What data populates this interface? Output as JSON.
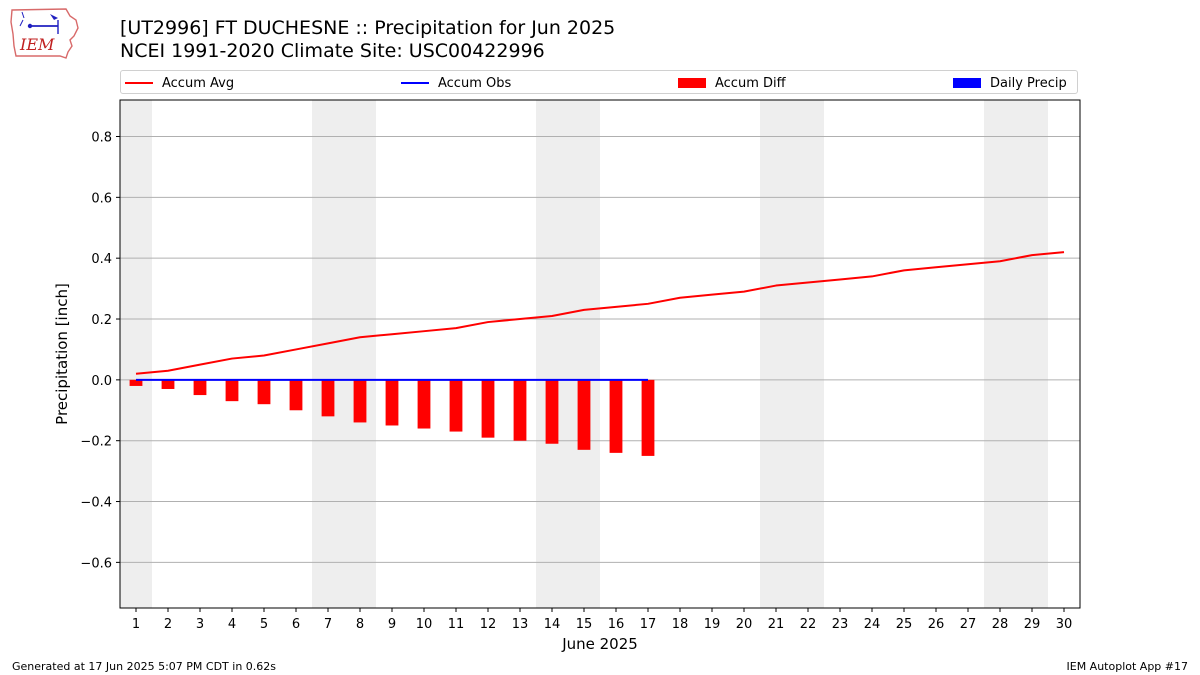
{
  "header": {
    "title_line1": "[UT2996] FT DUCHESNE :: Precipitation for Jun 2025",
    "title_line2": "NCEI 1991-2020 Climate Site: USC00422996",
    "logo_text": "IEM"
  },
  "footer": {
    "left": "Generated at 17 Jun 2025 5:07 PM CDT in 0.62s",
    "right": "IEM Autoplot App #17"
  },
  "legend": {
    "items": [
      {
        "label": "Accum Avg",
        "color": "#ff0000",
        "kind": "line"
      },
      {
        "label": "Accum Obs",
        "color": "#0000ff",
        "kind": "line"
      },
      {
        "label": "Accum Diff",
        "color": "#ff0000",
        "kind": "box"
      },
      {
        "label": "Daily Precip",
        "color": "#0000ff",
        "kind": "box"
      }
    ]
  },
  "chart_data": {
    "type": "line",
    "title": "[UT2996] FT DUCHESNE :: Precipitation for Jun 2025",
    "subtitle": "NCEI 1991-2020 Climate Site: USC00422996",
    "xlabel": "June 2025",
    "ylabel": "Precipitation [inch]",
    "xlim": [
      0.5,
      30.5
    ],
    "ylim": [
      -0.75,
      0.92
    ],
    "x": [
      1,
      2,
      3,
      4,
      5,
      6,
      7,
      8,
      9,
      10,
      11,
      12,
      13,
      14,
      15,
      16,
      17,
      18,
      19,
      20,
      21,
      22,
      23,
      24,
      25,
      26,
      27,
      28,
      29,
      30
    ],
    "x_tick_labels": [
      "1",
      "2",
      "3",
      "4",
      "5",
      "6",
      "7",
      "8",
      "9",
      "10",
      "11",
      "12",
      "13",
      "14",
      "15",
      "16",
      "17",
      "18",
      "19",
      "20",
      "21",
      "22",
      "23",
      "24",
      "25",
      "26",
      "27",
      "28",
      "29",
      "30"
    ],
    "y_ticks": [
      -0.6,
      -0.4,
      -0.2,
      0.0,
      0.2,
      0.4,
      0.6,
      0.8
    ],
    "y_tick_labels": [
      "−0.6",
      "−0.4",
      "−0.2",
      "0.0",
      "0.2",
      "0.4",
      "0.6",
      "0.8"
    ],
    "grid": "horizontal",
    "legend_position": "top",
    "weekend_shading": [
      [
        0.5,
        1.5
      ],
      [
        6.5,
        8.5
      ],
      [
        13.5,
        15.5
      ],
      [
        20.5,
        22.5
      ],
      [
        27.5,
        29.5
      ]
    ],
    "series": [
      {
        "name": "Accum Avg",
        "type": "line",
        "color": "#ff0000",
        "x": [
          1,
          2,
          3,
          4,
          5,
          6,
          7,
          8,
          9,
          10,
          11,
          12,
          13,
          14,
          15,
          16,
          17,
          18,
          19,
          20,
          21,
          22,
          23,
          24,
          25,
          26,
          27,
          28,
          29,
          30
        ],
        "values": [
          0.02,
          0.03,
          0.05,
          0.07,
          0.08,
          0.1,
          0.12,
          0.14,
          0.15,
          0.16,
          0.17,
          0.19,
          0.2,
          0.21,
          0.23,
          0.24,
          0.25,
          0.27,
          0.28,
          0.29,
          0.31,
          0.32,
          0.33,
          0.34,
          0.36,
          0.37,
          0.38,
          0.39,
          0.41,
          0.42
        ]
      },
      {
        "name": "Accum Obs",
        "type": "line",
        "color": "#0000ff",
        "x": [
          1,
          2,
          3,
          4,
          5,
          6,
          7,
          8,
          9,
          10,
          11,
          12,
          13,
          14,
          15,
          16,
          17
        ],
        "values": [
          0,
          0,
          0,
          0,
          0,
          0,
          0,
          0,
          0,
          0,
          0,
          0,
          0,
          0,
          0,
          0,
          0
        ]
      },
      {
        "name": "Accum Diff",
        "type": "bar",
        "color": "#ff0000",
        "x": [
          1,
          2,
          3,
          4,
          5,
          6,
          7,
          8,
          9,
          10,
          11,
          12,
          13,
          14,
          15,
          16,
          17
        ],
        "values": [
          -0.02,
          -0.03,
          -0.05,
          -0.07,
          -0.08,
          -0.1,
          -0.12,
          -0.14,
          -0.15,
          -0.16,
          -0.17,
          -0.19,
          -0.2,
          -0.21,
          -0.23,
          -0.24,
          -0.25
        ]
      },
      {
        "name": "Daily Precip",
        "type": "bar",
        "color": "#0000ff",
        "x": [
          1,
          2,
          3,
          4,
          5,
          6,
          7,
          8,
          9,
          10,
          11,
          12,
          13,
          14,
          15,
          16,
          17
        ],
        "values": [
          0,
          0,
          0,
          0,
          0,
          0,
          0,
          0,
          0,
          0,
          0,
          0,
          0,
          0,
          0,
          0,
          0
        ]
      }
    ]
  }
}
